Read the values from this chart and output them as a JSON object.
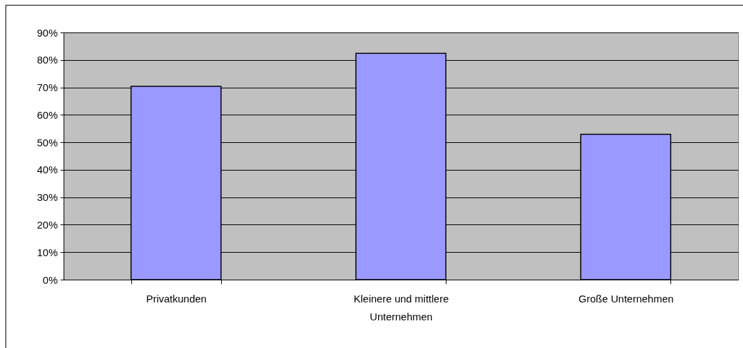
{
  "chart_data": {
    "type": "bar",
    "categories": [
      "Privatkunden",
      "Kleinere und mittlere Unternehmen",
      "Große Unternehmen"
    ],
    "values": [
      70.4,
      82.4,
      52.9
    ],
    "color": "#9999ff",
    "ylim": [
      0,
      90
    ],
    "yticks": [
      {
        "value": 0,
        "label": "0%"
      },
      {
        "value": 10,
        "label": "10%"
      },
      {
        "value": 20,
        "label": "20%"
      },
      {
        "value": 30,
        "label": "30%"
      },
      {
        "value": 40,
        "label": "40%"
      },
      {
        "value": 50,
        "label": "50%"
      },
      {
        "value": 60,
        "label": "60%"
      },
      {
        "value": 70,
        "label": "70%"
      },
      {
        "value": 80,
        "label": "80%"
      },
      {
        "value": 90,
        "label": "90%"
      }
    ],
    "grid": "y"
  }
}
